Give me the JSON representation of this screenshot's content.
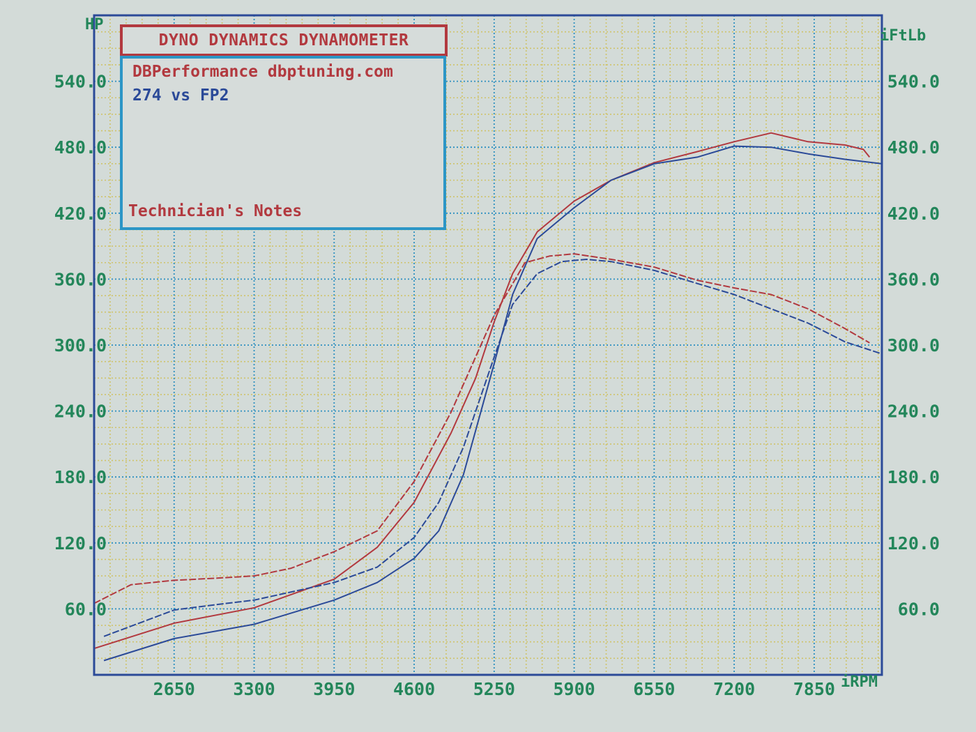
{
  "header": {
    "title": "DYNO DYNAMICS DYNAMOMETER",
    "company": "DBPerformance dbptuning.com",
    "comparison": "274 vs FP2",
    "notes_label": "Technician's Notes"
  },
  "colors": {
    "run_274": "#b2393f",
    "run_fp2": "#2b4a98",
    "grid_major": "#2c8fc0",
    "grid_minor": "#cfc36a",
    "axis_text": "#23865a",
    "frame": "#2b4a98"
  },
  "chart_data": {
    "type": "line",
    "xlabel": "iRPM",
    "ylabel_left": "HP",
    "ylabel_right": "iFtLb",
    "xlim": [
      2000,
      8400
    ],
    "ylim": [
      0,
      600
    ],
    "x_ticks": [
      "2650",
      "3300",
      "3950",
      "4600",
      "5250",
      "5900",
      "6550",
      "7200",
      "7850"
    ],
    "y_ticks_left": [
      "60.0",
      "120.0",
      "180.0",
      "240.0",
      "300.0",
      "360.0",
      "420.0",
      "480.0",
      "540.0"
    ],
    "y_ticks_right": [
      "60.0",
      "120.0",
      "180.0",
      "240.0",
      "300.0",
      "360.0",
      "420.0",
      "480.0",
      "540.0"
    ],
    "grid": true,
    "series": [
      {
        "key": "red_power",
        "style": "solid",
        "color": "#b2393f",
        "points": [
          [
            2000,
            24
          ],
          [
            2650,
            47
          ],
          [
            3300,
            61
          ],
          [
            3950,
            87
          ],
          [
            4300,
            116
          ],
          [
            4600,
            157
          ],
          [
            4900,
            220
          ],
          [
            5100,
            270
          ],
          [
            5250,
            321
          ],
          [
            5400,
            365
          ],
          [
            5600,
            403
          ],
          [
            5900,
            431
          ],
          [
            6200,
            450
          ],
          [
            6550,
            466
          ],
          [
            6900,
            476
          ],
          [
            7200,
            485
          ],
          [
            7500,
            493
          ],
          [
            7800,
            485
          ],
          [
            8100,
            482
          ],
          [
            8250,
            478
          ],
          [
            8300,
            471
          ]
        ]
      },
      {
        "key": "blue_power",
        "style": "solid",
        "color": "#2b4a98",
        "points": [
          [
            2080,
            13
          ],
          [
            2650,
            33
          ],
          [
            3300,
            46
          ],
          [
            3950,
            68
          ],
          [
            4300,
            84
          ],
          [
            4600,
            106
          ],
          [
            4800,
            131
          ],
          [
            5000,
            182
          ],
          [
            5250,
            283
          ],
          [
            5400,
            346
          ],
          [
            5600,
            397
          ],
          [
            5900,
            425
          ],
          [
            6200,
            450
          ],
          [
            6550,
            465
          ],
          [
            6900,
            471
          ],
          [
            7200,
            481
          ],
          [
            7500,
            480
          ],
          [
            7800,
            474
          ],
          [
            8100,
            469
          ],
          [
            8400,
            465
          ]
        ]
      },
      {
        "key": "red_torque",
        "style": "dashed",
        "color": "#b2393f",
        "points": [
          [
            2000,
            65
          ],
          [
            2300,
            82
          ],
          [
            2650,
            86
          ],
          [
            3000,
            88
          ],
          [
            3300,
            90
          ],
          [
            3600,
            97
          ],
          [
            3950,
            112
          ],
          [
            4300,
            131
          ],
          [
            4600,
            176
          ],
          [
            4900,
            239
          ],
          [
            5250,
            327
          ],
          [
            5500,
            375
          ],
          [
            5700,
            381
          ],
          [
            5900,
            383
          ],
          [
            6200,
            378
          ],
          [
            6550,
            371
          ],
          [
            6900,
            359
          ],
          [
            7200,
            352
          ],
          [
            7500,
            346
          ],
          [
            7800,
            333
          ],
          [
            8100,
            315
          ],
          [
            8300,
            302
          ]
        ]
      },
      {
        "key": "blue_torque",
        "style": "dashed",
        "color": "#2b4a98",
        "points": [
          [
            2080,
            35
          ],
          [
            2650,
            59
          ],
          [
            3000,
            64
          ],
          [
            3300,
            68
          ],
          [
            3950,
            84
          ],
          [
            4300,
            98
          ],
          [
            4600,
            125
          ],
          [
            4800,
            157
          ],
          [
            5000,
            207
          ],
          [
            5250,
            289
          ],
          [
            5400,
            337
          ],
          [
            5600,
            365
          ],
          [
            5800,
            376
          ],
          [
            6000,
            378
          ],
          [
            6200,
            376
          ],
          [
            6550,
            368
          ],
          [
            6900,
            356
          ],
          [
            7200,
            346
          ],
          [
            7500,
            333
          ],
          [
            7800,
            320
          ],
          [
            8100,
            303
          ],
          [
            8400,
            292
          ]
        ]
      }
    ]
  }
}
